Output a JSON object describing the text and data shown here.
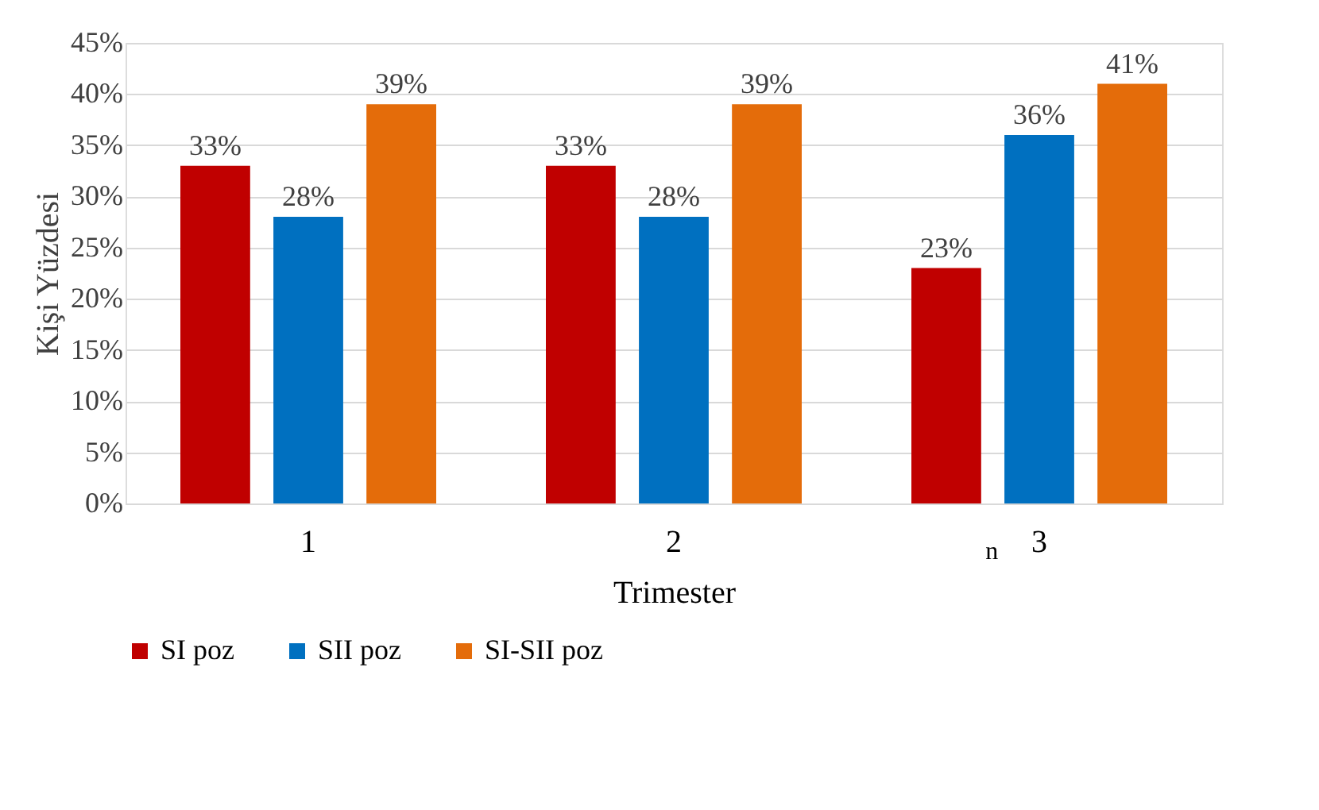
{
  "chart_data": {
    "type": "bar",
    "xlabel": "Trimester",
    "ylabel": "Kişi Yüzdesi",
    "categories": [
      "1",
      "2",
      "3"
    ],
    "series": [
      {
        "name": "SI poz",
        "color": "#c00000",
        "values": [
          33,
          33,
          23
        ],
        "value_labels": [
          "33%",
          "33%",
          "23%"
        ]
      },
      {
        "name": "SII poz",
        "color": "#0070c0",
        "values": [
          28,
          28,
          36
        ],
        "value_labels": [
          "28%",
          "28%",
          "36%"
        ]
      },
      {
        "name": "SI-SII poz",
        "color": "#e46c0a",
        "values": [
          39,
          39,
          41
        ],
        "value_labels": [
          "39%",
          "39%",
          "41%"
        ]
      }
    ],
    "ylim": [
      0,
      45
    ],
    "yticks": [
      {
        "value": 0,
        "label": "0%"
      },
      {
        "value": 5,
        "label": "5%"
      },
      {
        "value": 10,
        "label": "10%"
      },
      {
        "value": 15,
        "label": "15%"
      },
      {
        "value": 20,
        "label": "20%"
      },
      {
        "value": 25,
        "label": "25%"
      },
      {
        "value": 30,
        "label": "30%"
      },
      {
        "value": 35,
        "label": "35%"
      },
      {
        "value": 40,
        "label": "40%"
      },
      {
        "value": 45,
        "label": "45%"
      }
    ],
    "grid": "y",
    "legend": "bottom",
    "annotations": [
      "n"
    ]
  }
}
